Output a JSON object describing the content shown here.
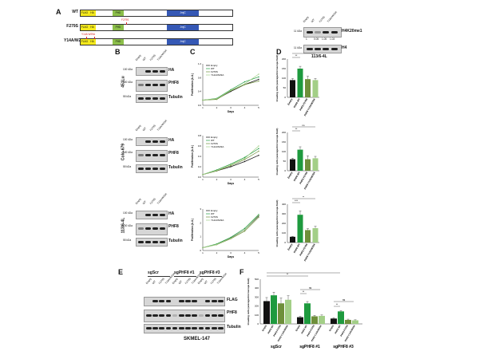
{
  "panels": {
    "A": "A",
    "B": "B",
    "C": "C",
    "D": "D",
    "E": "E",
    "F": "F"
  },
  "constructs": [
    {
      "name": "WT",
      "mutation": ""
    },
    {
      "name": "F279S",
      "mutation": "F279S"
    },
    {
      "name": "Y14A/W29A",
      "mutation": "Y14A W29A"
    }
  ],
  "construct_domains": {
    "flag": "FLAG",
    "ha": "HA",
    "phd": "PHD",
    "jmjc": "JmjC"
  },
  "blotA": {
    "lanes": [
      "Empty",
      "WT",
      "F279S",
      "Y14A/W29A"
    ],
    "row1": "H4K20me1",
    "row2": "H4",
    "quant": [
      "1",
      "0.05",
      "1.05",
      "1.03"
    ],
    "cell": "113/6-4L",
    "mw": "11 kDa"
  },
  "cell_lines": [
    "451Lu",
    "Colo-679",
    "113/6-4L"
  ],
  "blot_lanes": [
    "Empty",
    "WT",
    "F279S",
    "Y14A/W29A"
  ],
  "blot_rows": [
    "HA",
    "PHF8",
    "Tubulin"
  ],
  "mw_markers": [
    "100 kDa",
    "100 kDa",
    "130 kDa",
    "55 kDa"
  ],
  "prolif": {
    "ylabel": "Proliferation (A.U.)",
    "xlabel": "Days",
    "legend": [
      "Empty",
      "WT",
      "F279S",
      "Y14A/W29A"
    ]
  },
  "invasion": {
    "ylabel": "Invading cells (average/microscope field)",
    "categories": [
      "Empty",
      "PHF8 WT",
      "PHF8 F279S",
      "PHF8 Y14A/W29A"
    ],
    "sig": [
      "**",
      "**",
      "ns",
      "***",
      "**",
      "**"
    ]
  },
  "panelE": {
    "groups": [
      "sgScr",
      "sgPHF8 #1",
      "sgPHF8 #3"
    ],
    "lanes": [
      "Empty",
      "WT",
      "F279S",
      "Y14A/W29A"
    ],
    "rows": [
      "FLAG",
      "PHF8",
      "Tubulin"
    ],
    "cell": "SKMEL-147"
  },
  "panelF": {
    "ylabel": "Invading cells (average/microscope field)",
    "groups": [
      "sgScr",
      "sgPHF8 #1",
      "sgPHF8 #3"
    ],
    "categories": [
      "Empty",
      "PHF8 WT",
      "PHF8 F279S",
      "PHF8 Y14A/W29A"
    ],
    "sig": [
      "**",
      "**",
      "**",
      "ns",
      "**",
      "ns",
      "**",
      "ns"
    ]
  },
  "chart_data": [
    {
      "type": "line",
      "panel": "C",
      "cell": "451Lu",
      "x": [
        1,
        2,
        3,
        4,
        5
      ],
      "series": [
        {
          "name": "Empty",
          "values": [
            0.15,
            0.18,
            0.4,
            0.6,
            0.75
          ]
        },
        {
          "name": "WT",
          "values": [
            0.15,
            0.2,
            0.45,
            0.68,
            0.82
          ]
        },
        {
          "name": "F279S",
          "values": [
            0.15,
            0.17,
            0.42,
            0.6,
            0.7
          ]
        },
        {
          "name": "Y14A/W29A",
          "values": [
            0.15,
            0.19,
            0.43,
            0.62,
            0.9
          ]
        }
      ],
      "ylim": [
        0,
        1.2
      ],
      "yticks": [
        "0.0",
        "0.4",
        "0.8",
        "1.2"
      ]
    },
    {
      "type": "line",
      "panel": "C",
      "cell": "Colo-679",
      "x": [
        1,
        2,
        3,
        4,
        5
      ],
      "series": [
        {
          "name": "Empty",
          "values": [
            0.05,
            0.12,
            0.2,
            0.3,
            0.42
          ]
        },
        {
          "name": "WT",
          "values": [
            0.05,
            0.14,
            0.25,
            0.38,
            0.55
          ]
        },
        {
          "name": "F279S",
          "values": [
            0.05,
            0.12,
            0.22,
            0.34,
            0.5
          ]
        },
        {
          "name": "Y14A/W29A",
          "values": [
            0.05,
            0.13,
            0.24,
            0.36,
            0.6
          ]
        }
      ],
      "ylim": [
        0,
        0.8
      ],
      "yticks": [
        "0.0",
        "0.2",
        "0.4",
        "0.6",
        "0.8"
      ]
    },
    {
      "type": "line",
      "panel": "C",
      "cell": "113/6-4L",
      "x": [
        1,
        2,
        3,
        4,
        5
      ],
      "series": [
        {
          "name": "Empty",
          "values": [
            0.2,
            0.45,
            0.9,
            1.5,
            2.5
          ]
        },
        {
          "name": "WT",
          "values": [
            0.2,
            0.48,
            0.95,
            1.6,
            2.6
          ]
        },
        {
          "name": "F279S",
          "values": [
            0.2,
            0.42,
            0.85,
            1.4,
            2.4
          ]
        },
        {
          "name": "Y14A/W29A",
          "values": [
            0.2,
            0.44,
            0.88,
            1.5,
            2.55
          ]
        }
      ],
      "ylim": [
        0,
        3
      ],
      "yticks": [
        "0",
        "1",
        "2",
        "3"
      ]
    },
    {
      "type": "bar",
      "panel": "D",
      "cell": "451Lu",
      "categories": [
        "Empty",
        "PHF8 WT",
        "PHF8 F279S",
        "PHF8 Y14A/W29A"
      ],
      "values": [
        90,
        150,
        95,
        90
      ],
      "errors": [
        8,
        12,
        15,
        8
      ],
      "ylim": [
        0,
        200
      ],
      "yticks": [
        "0",
        "50",
        "100",
        "150",
        "200"
      ]
    },
    {
      "type": "bar",
      "panel": "D",
      "cell": "Colo-679",
      "categories": [
        "Empty",
        "PHF8 WT",
        "PHF8 F279S",
        "PHF8 Y14A/W29A"
      ],
      "values": [
        60,
        110,
        60,
        65
      ],
      "errors": [
        5,
        15,
        18,
        10
      ],
      "ylim": [
        0,
        200
      ],
      "yticks": [
        "0",
        "50",
        "100",
        "150",
        "200"
      ]
    },
    {
      "type": "bar",
      "panel": "D",
      "cell": "113/6-4L",
      "categories": [
        "Empty",
        "PHF8 WT",
        "PHF8 F279S",
        "PHF8 Y14A/W29A"
      ],
      "values": [
        60,
        290,
        130,
        150
      ],
      "errors": [
        5,
        40,
        15,
        20
      ],
      "ylim": [
        0,
        400
      ],
      "yticks": [
        "0",
        "100",
        "200",
        "300",
        "400"
      ]
    },
    {
      "type": "bar",
      "panel": "F",
      "groups": [
        "sgScr",
        "sgPHF8 #1",
        "sgPHF8 #3"
      ],
      "categories": [
        "Empty",
        "PHF8 WT",
        "PHF8 F279S",
        "PHF8 Y14A/W29A"
      ],
      "values": [
        [
          255,
          320,
          230,
          270
        ],
        [
          75,
          230,
          85,
          90
        ],
        [
          60,
          140,
          45,
          40
        ]
      ],
      "errors": [
        [
          40,
          35,
          60,
          45
        ],
        [
          10,
          20,
          10,
          10
        ],
        [
          8,
          10,
          8,
          6
        ]
      ],
      "ylim": [
        0,
        500
      ],
      "yticks": [
        "0",
        "100",
        "200",
        "300",
        "400",
        "500"
      ]
    }
  ],
  "colors": {
    "empty": "#111111",
    "wt": "#1e9a3e",
    "f279s": "#6e8f3a",
    "y14a": "#a3cf87",
    "dom_flag": "#f4e91c",
    "dom_phd": "#8cbf4a",
    "dom_jmjc": "#3558b5"
  }
}
